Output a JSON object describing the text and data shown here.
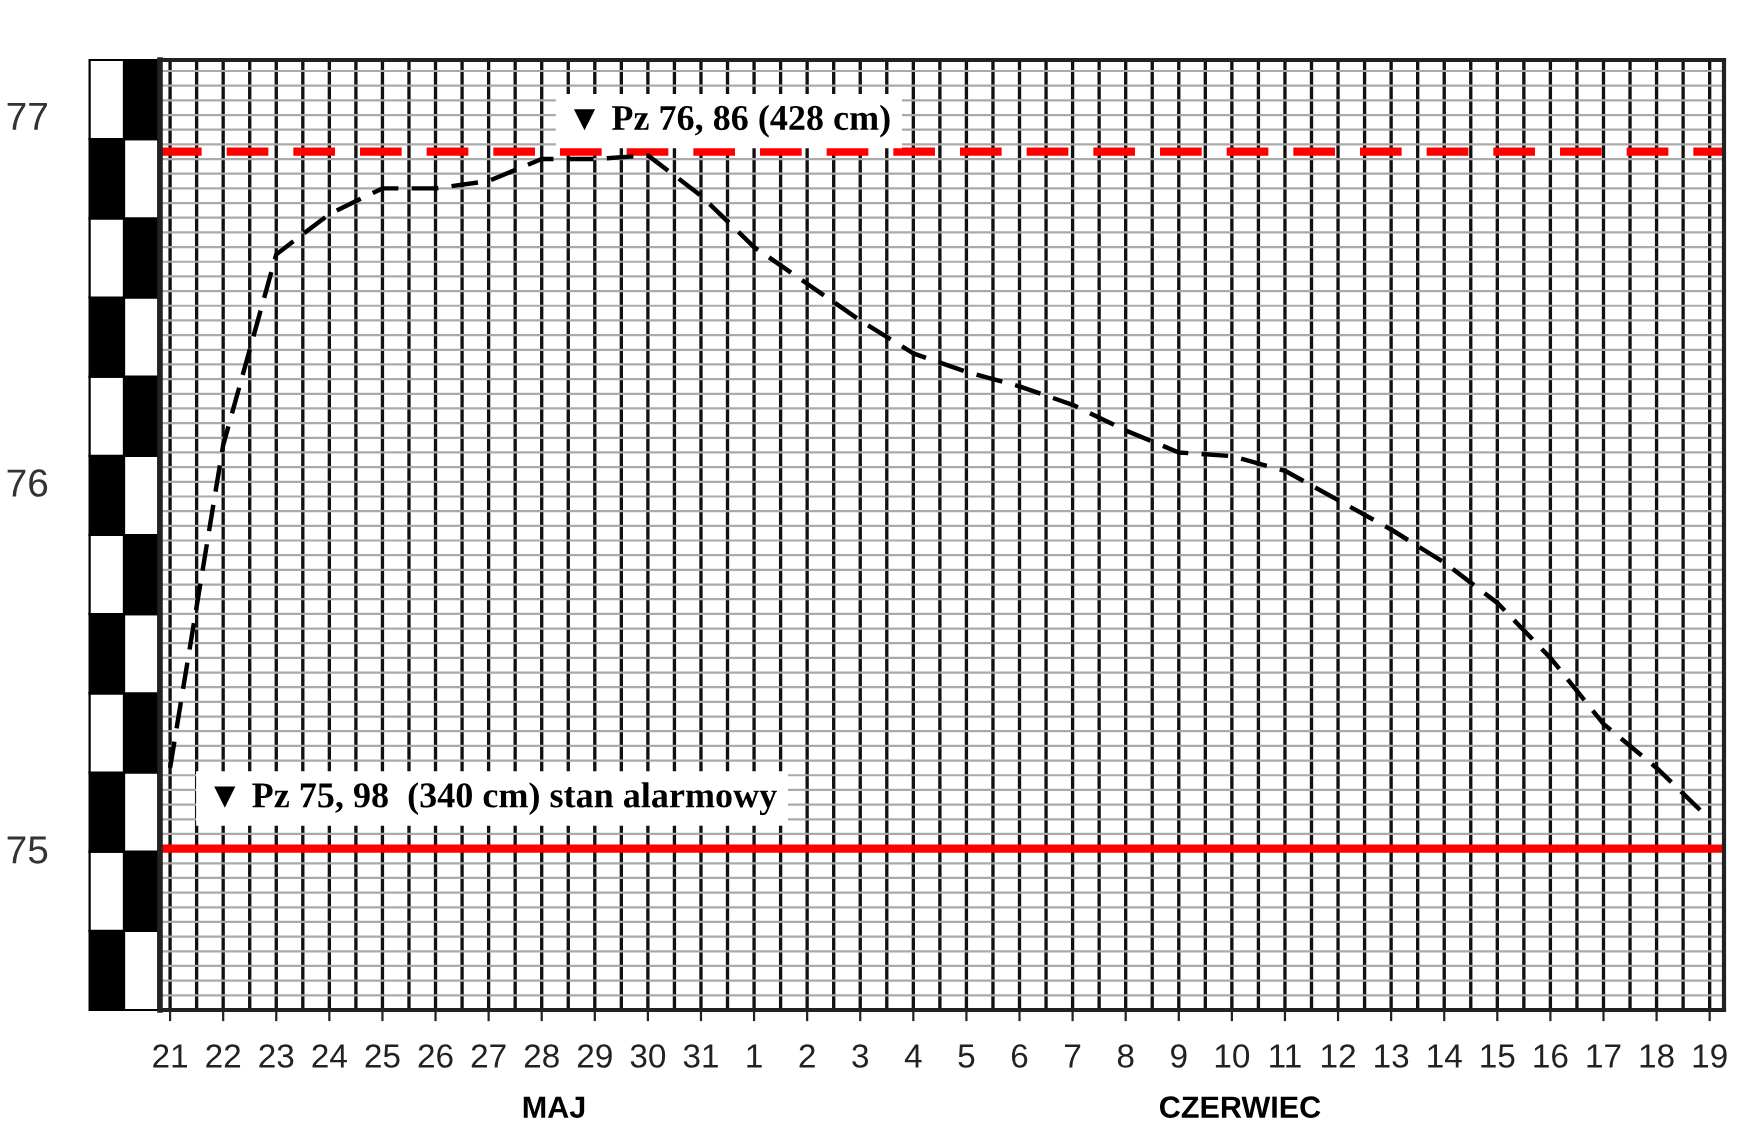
{
  "chart_data": {
    "type": "line",
    "categories": [
      "21",
      "22",
      "23",
      "24",
      "25",
      "26",
      "27",
      "28",
      "29",
      "30",
      "31",
      "1",
      "2",
      "3",
      "4",
      "5",
      "6",
      "7",
      "8",
      "9",
      "10",
      "11",
      "12",
      "13",
      "14",
      "15",
      "16",
      "17",
      "18",
      "19"
    ],
    "series": [
      {
        "color": "#000000",
        "line_style": "dashed",
        "values": [
          75.22,
          76.1,
          76.62,
          76.73,
          76.8,
          76.8,
          76.82,
          76.88,
          76.88,
          76.89,
          76.78,
          76.64,
          76.54,
          76.44,
          76.35,
          76.3,
          76.26,
          76.21,
          76.14,
          76.08,
          76.07,
          76.03,
          75.95,
          75.87,
          75.78,
          75.67,
          75.52,
          75.34,
          75.22,
          75.08
        ]
      }
    ],
    "ylim": [
      74.56,
      77.15
    ],
    "yticks": [
      75,
      76,
      77
    ],
    "grid": true,
    "ref_lines": [
      {
        "axis": "y",
        "value": 76.9,
        "label": "▼ Pz 76, 86 (428 cm)",
        "color": "#ff0000",
        "line_style": "dashed"
      },
      {
        "axis": "y",
        "value": 75.0,
        "label": "▼ Pz 75, 98  (340 cm) stan alarmowy",
        "color": "#ff0000",
        "line_style": "solid"
      }
    ],
    "annotations": [
      "MAJ",
      "CZERWIEC"
    ]
  }
}
